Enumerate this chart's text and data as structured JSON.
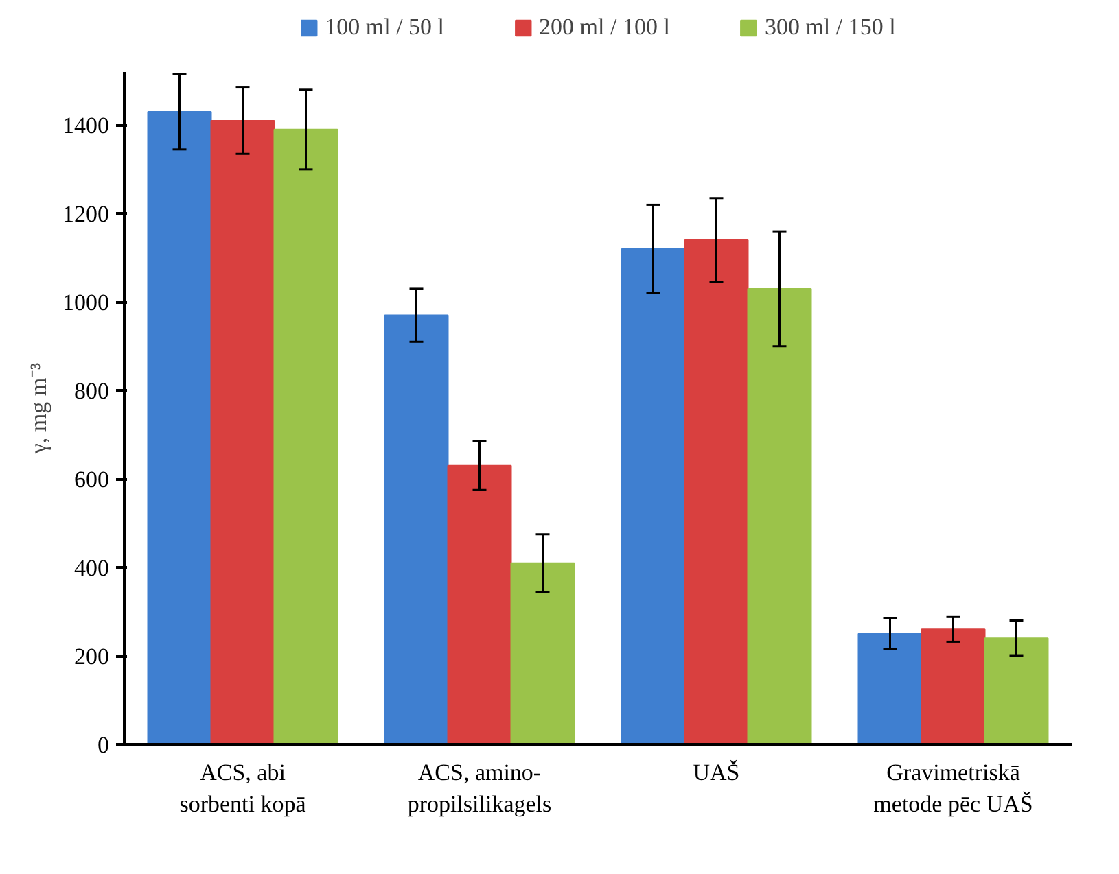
{
  "chart_data": {
    "type": "bar",
    "ylabel": "γ, mg m⁻³",
    "categories": [
      "ACS, abi\nsorbenti kopā",
      "ACS, amino-\npropilsilikagels",
      "UAŠ",
      "Gravimetriskā\nmetode pēc UAŠ"
    ],
    "series": [
      {
        "name": "100 ml / 50 l",
        "color": "#3f7fd0",
        "values": [
          1430,
          970,
          1120,
          250
        ],
        "errors": [
          85,
          60,
          100,
          35
        ]
      },
      {
        "name": "200 ml / 100 l",
        "color": "#d9403f",
        "values": [
          1410,
          630,
          1140,
          260
        ],
        "errors": [
          75,
          55,
          95,
          28
        ]
      },
      {
        "name": "300 ml / 150 l",
        "color": "#9bc34a",
        "values": [
          1390,
          410,
          1030,
          240
        ],
        "errors": [
          90,
          65,
          130,
          40
        ]
      }
    ],
    "ylim": [
      0,
      1520
    ],
    "yticks": [
      0,
      200,
      400,
      600,
      800,
      1000,
      1200,
      1400
    ],
    "grid": false,
    "legend": "top"
  }
}
